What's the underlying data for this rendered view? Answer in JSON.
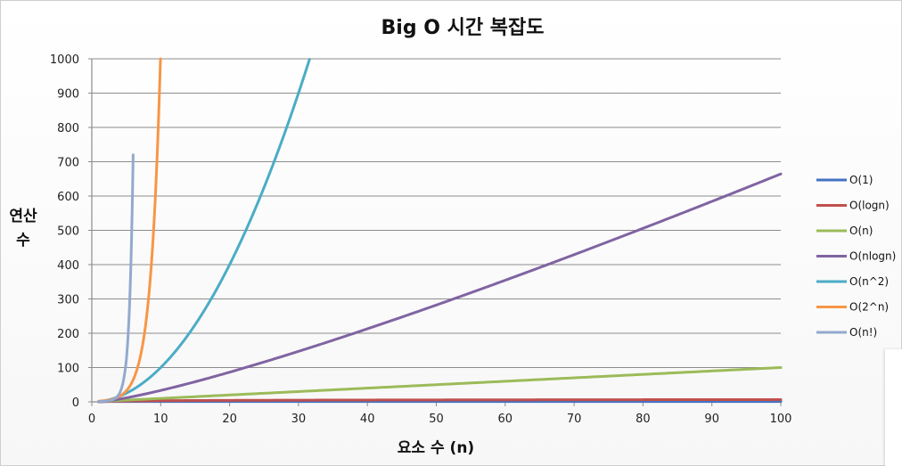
{
  "chart_data": {
    "type": "line",
    "title": "Big O 시간 복잡도",
    "xlabel": "요소 수 (n)",
    "ylabel_lines": [
      "연산",
      "수"
    ],
    "xlim": [
      0,
      100
    ],
    "ylim": [
      0,
      1000
    ],
    "x_ticks": [
      0,
      10,
      20,
      30,
      40,
      50,
      60,
      70,
      80,
      90,
      100
    ],
    "y_ticks": [
      0,
      100,
      200,
      300,
      400,
      500,
      600,
      700,
      800,
      900,
      1000
    ],
    "grid": "horizontal",
    "legend_position": "right",
    "series": [
      {
        "name": "O(1)",
        "color": "#4472c4",
        "function": "constant",
        "x": [
          1,
          100
        ],
        "y": [
          1,
          1
        ]
      },
      {
        "name": "O(logn)",
        "color": "#c0504d",
        "function": "log2",
        "x": [
          1,
          10,
          20,
          30,
          40,
          50,
          60,
          70,
          80,
          90,
          100
        ],
        "y": [
          0,
          3.3,
          4.3,
          4.9,
          5.3,
          5.6,
          5.9,
          6.1,
          6.3,
          6.5,
          6.6
        ]
      },
      {
        "name": "O(n)",
        "color": "#9bbb59",
        "function": "linear",
        "x": [
          1,
          100
        ],
        "y": [
          1,
          100
        ]
      },
      {
        "name": "O(nlogn)",
        "color": "#8064a2",
        "function": "nlog2n",
        "x": [
          1,
          10,
          20,
          30,
          40,
          50,
          60,
          70,
          80,
          90,
          100
        ],
        "y": [
          0,
          33,
          86,
          147,
          213,
          282,
          354,
          429,
          506,
          584,
          664
        ]
      },
      {
        "name": "O(n^2)",
        "color": "#4bacc6",
        "function": "square",
        "x": [
          1,
          5,
          10,
          15,
          20,
          25,
          30,
          31.6
        ],
        "y": [
          1,
          25,
          100,
          225,
          400,
          625,
          900,
          1000
        ]
      },
      {
        "name": "O(2^n)",
        "color": "#f79646",
        "function": "exp2",
        "x": [
          1,
          2,
          3,
          4,
          5,
          6,
          7,
          8,
          9,
          9.97
        ],
        "y": [
          2,
          4,
          8,
          16,
          32,
          64,
          128,
          256,
          512,
          1000
        ]
      },
      {
        "name": "O(n!)",
        "color": "#93a9cf",
        "function": "factorial",
        "x": [
          1,
          2,
          3,
          4,
          5,
          6
        ],
        "y": [
          1,
          2,
          6,
          24,
          120,
          720
        ]
      }
    ]
  }
}
